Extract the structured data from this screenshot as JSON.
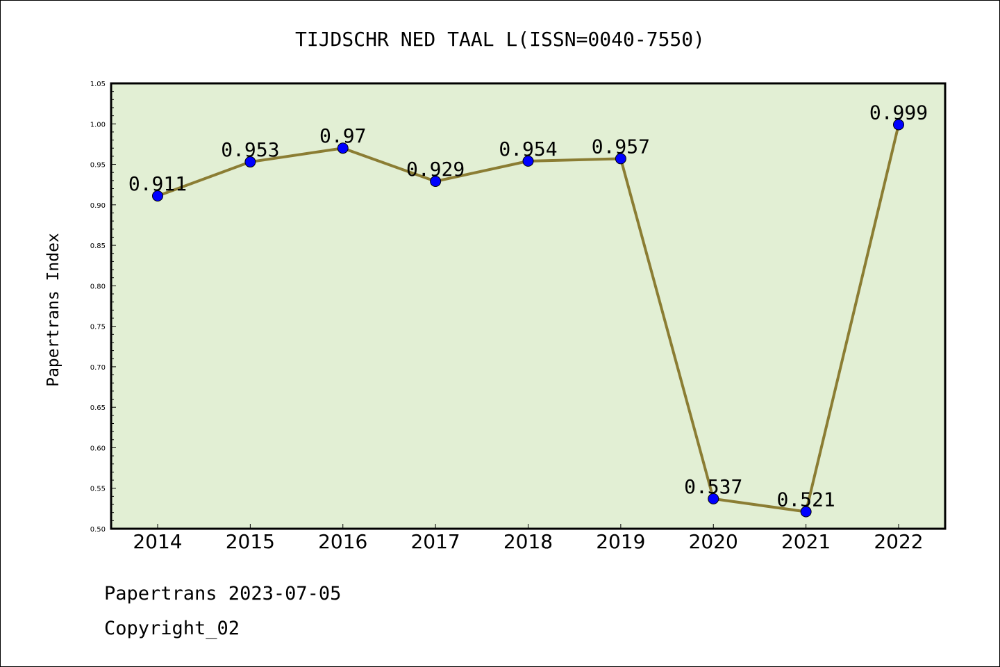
{
  "chart_data": {
    "type": "line",
    "title": "TIJDSCHR NED TAAL L(ISSN=0040-7550)",
    "xlabel": "",
    "ylabel": "Papertrans Index",
    "categories": [
      "2014",
      "2015",
      "2016",
      "2017",
      "2018",
      "2019",
      "2020",
      "2021",
      "2022"
    ],
    "values": [
      0.911,
      0.953,
      0.97,
      0.929,
      0.954,
      0.957,
      0.537,
      0.521,
      0.999
    ],
    "data_labels": [
      "0.911",
      "0.953",
      "0.97",
      "0.929",
      "0.954",
      "0.957",
      "0.537",
      "0.521",
      "0.999"
    ],
    "ylim": [
      0.5,
      1.05
    ],
    "yticks": [
      "0.50",
      "0.55",
      "0.60",
      "0.65",
      "0.70",
      "0.75",
      "0.80",
      "0.85",
      "0.90",
      "0.95",
      "1.00",
      "1.05"
    ],
    "grid": false,
    "legend": "none",
    "colors": {
      "plot_background": "#e2efd4",
      "line": "#8b7d33",
      "marker": "#0000ff"
    }
  },
  "footer": {
    "line1": "Papertrans 2023-07-05",
    "line2": "Copyright_02"
  }
}
